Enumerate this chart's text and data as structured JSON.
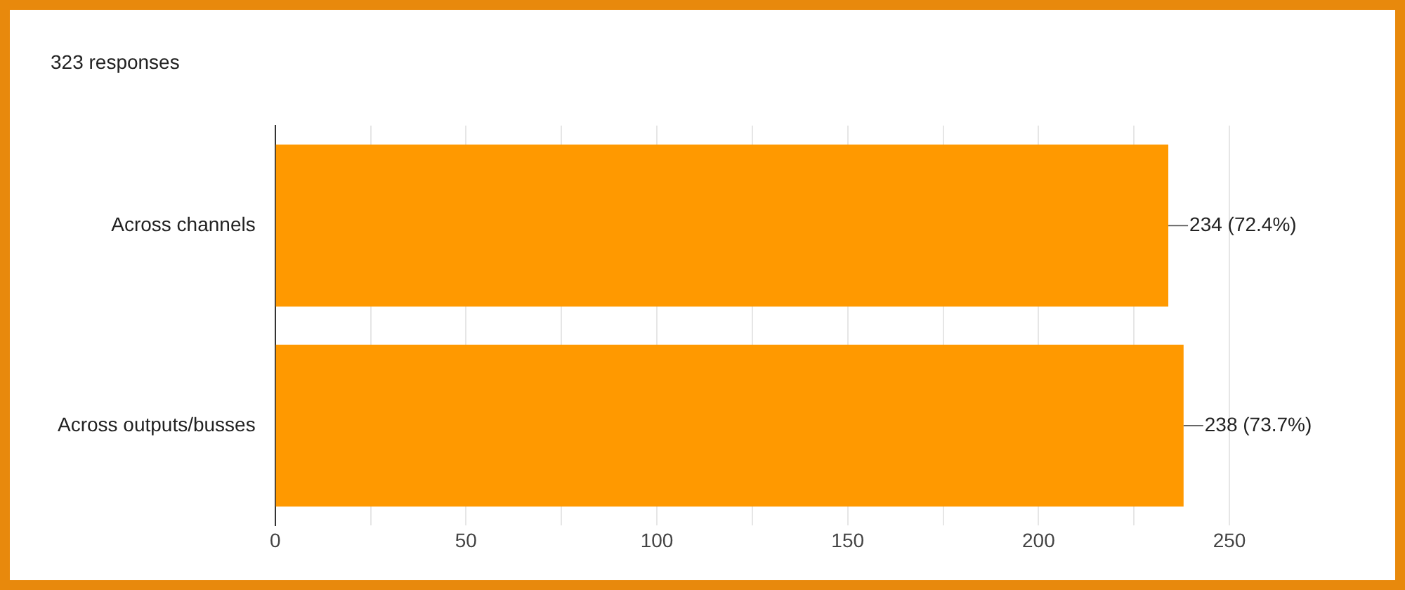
{
  "chart_data": {
    "type": "bar",
    "orientation": "horizontal",
    "title": "323 responses",
    "categories": [
      "Across channels",
      "Across outputs/busses"
    ],
    "values": [
      234,
      238
    ],
    "color": "#ff9900",
    "value_labels": [
      "234 (72.4%)",
      "238 (73.7%)"
    ],
    "xlim": [
      0,
      250
    ],
    "xticks": [
      0,
      {
        "value": 25,
        "label": null
      },
      50,
      {
        "value": 75,
        "label": null
      },
      100,
      {
        "value": 125,
        "label": null
      },
      150,
      {
        "value": 175,
        "label": null
      },
      200,
      {
        "value": 225,
        "label": null
      },
      250
    ],
    "grid": "x",
    "legend": false
  }
}
